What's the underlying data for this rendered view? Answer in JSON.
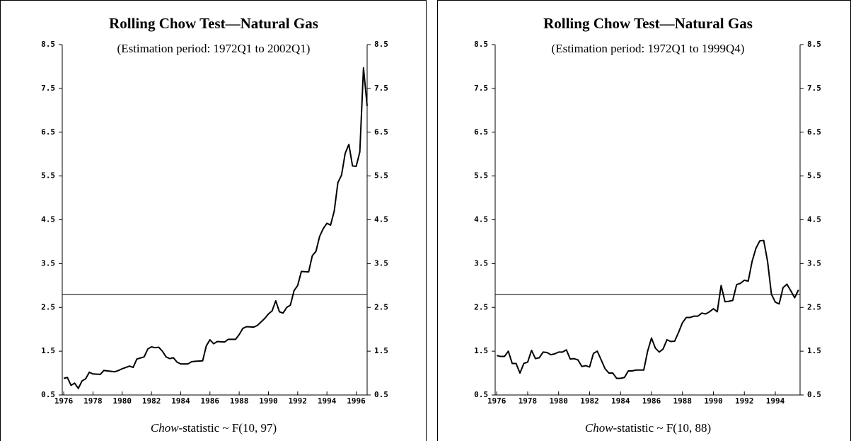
{
  "chart_data": [
    {
      "type": "line",
      "title": "Rolling Chow Test—Natural Gas",
      "subtitle": "(Estimation period: 1972Q1 to 2002Q1)",
      "xlabel_italic": "Chow",
      "xlabel": "-statistic ~ F(10, 97)",
      "color": "#000000",
      "xlim": [
        1975.9,
        1996.75
      ],
      "xticks": [
        1976,
        1978,
        1980,
        1982,
        1984,
        1986,
        1988,
        1990,
        1992,
        1994,
        1996
      ],
      "ylim": [
        0.5,
        8.5
      ],
      "yticks": [
        0.5,
        1.5,
        2.5,
        3.5,
        4.5,
        5.5,
        6.5,
        7.5,
        8.5
      ],
      "hline": 2.79,
      "x": [
        1976.0,
        1976.25,
        1976.5,
        1976.75,
        1977.0,
        1977.25,
        1977.5,
        1977.75,
        1978.0,
        1978.5,
        1978.75,
        1979.0,
        1979.5,
        1979.75,
        1980.0,
        1980.5,
        1980.75,
        1981.0,
        1981.5,
        1981.75,
        1982.0,
        1982.25,
        1982.5,
        1982.75,
        1983.0,
        1983.25,
        1983.5,
        1983.75,
        1984.0,
        1984.5,
        1984.75,
        1985.0,
        1985.5,
        1985.75,
        1986.0,
        1986.25,
        1986.5,
        1987.0,
        1987.25,
        1987.75,
        1988.0,
        1988.25,
        1988.5,
        1989.0,
        1989.25,
        1989.75,
        1990.0,
        1990.25,
        1990.5,
        1990.75,
        1991.0,
        1991.25,
        1991.5,
        1991.75,
        1992.0,
        1992.25,
        1992.75,
        1993.0,
        1993.25,
        1993.5,
        1993.75,
        1994.0,
        1994.25,
        1994.5,
        1994.75,
        1995.0,
        1995.25,
        1995.5,
        1995.75,
        1996.0,
        1996.25,
        1996.5,
        1996.75
      ],
      "values": [
        0.88,
        0.9,
        0.72,
        0.77,
        0.65,
        0.82,
        0.87,
        1.02,
        0.98,
        0.97,
        1.06,
        1.05,
        1.03,
        1.06,
        1.1,
        1.16,
        1.13,
        1.32,
        1.37,
        1.55,
        1.6,
        1.58,
        1.59,
        1.5,
        1.37,
        1.33,
        1.35,
        1.25,
        1.21,
        1.21,
        1.26,
        1.27,
        1.28,
        1.62,
        1.76,
        1.67,
        1.72,
        1.71,
        1.77,
        1.77,
        1.88,
        2.02,
        2.06,
        2.05,
        2.09,
        2.25,
        2.35,
        2.42,
        2.65,
        2.4,
        2.37,
        2.5,
        2.55,
        2.88,
        3.0,
        3.32,
        3.31,
        3.68,
        3.78,
        4.12,
        4.3,
        4.42,
        4.38,
        4.7,
        5.35,
        5.52,
        6.02,
        6.22,
        5.73,
        5.72,
        6.05,
        7.97,
        7.1
      ]
    },
    {
      "type": "line",
      "title": "Rolling Chow Test—Natural Gas",
      "subtitle": "(Estimation period: 1972Q1 to 1999Q4)",
      "xlabel_italic": "Chow",
      "xlabel": "-statistic ~ F(10, 88)",
      "color": "#000000",
      "xlim": [
        1975.9,
        1995.6
      ],
      "xticks": [
        1976,
        1978,
        1980,
        1982,
        1984,
        1986,
        1988,
        1990,
        1992,
        1994
      ],
      "ylim": [
        0.5,
        8.5
      ],
      "yticks": [
        0.5,
        1.5,
        2.5,
        3.5,
        4.5,
        5.5,
        6.5,
        7.5,
        8.5
      ],
      "hline": 2.79,
      "x": [
        1976.0,
        1976.25,
        1976.5,
        1976.75,
        1977.0,
        1977.25,
        1977.5,
        1977.75,
        1978.0,
        1978.25,
        1978.5,
        1978.75,
        1979.0,
        1979.25,
        1979.5,
        1979.75,
        1980.0,
        1980.25,
        1980.5,
        1980.75,
        1981.0,
        1981.25,
        1981.5,
        1981.75,
        1982.0,
        1982.25,
        1982.5,
        1982.75,
        1983.0,
        1983.25,
        1983.5,
        1983.75,
        1984.0,
        1984.25,
        1984.5,
        1984.75,
        1985.0,
        1985.25,
        1985.5,
        1985.75,
        1986.0,
        1986.25,
        1986.5,
        1986.75,
        1987.0,
        1987.25,
        1987.5,
        1987.75,
        1988.0,
        1988.25,
        1988.5,
        1988.75,
        1989.0,
        1989.25,
        1989.5,
        1989.75,
        1990.0,
        1990.25,
        1990.5,
        1990.75,
        1991.0,
        1991.25,
        1991.5,
        1991.75,
        1992.0,
        1992.25,
        1992.5,
        1992.75,
        1993.0,
        1993.25,
        1993.5,
        1993.75,
        1994.0,
        1994.25,
        1994.5,
        1994.75,
        1995.0,
        1995.25,
        1995.5
      ],
      "values": [
        1.4,
        1.38,
        1.38,
        1.5,
        1.22,
        1.22,
        1.0,
        1.22,
        1.25,
        1.52,
        1.33,
        1.35,
        1.48,
        1.47,
        1.42,
        1.44,
        1.48,
        1.48,
        1.53,
        1.32,
        1.33,
        1.3,
        1.15,
        1.17,
        1.14,
        1.45,
        1.5,
        1.3,
        1.1,
        1.0,
        1.0,
        0.88,
        0.88,
        0.9,
        1.05,
        1.05,
        1.07,
        1.07,
        1.07,
        1.5,
        1.8,
        1.57,
        1.48,
        1.55,
        1.76,
        1.72,
        1.73,
        1.93,
        2.15,
        2.27,
        2.27,
        2.3,
        2.3,
        2.37,
        2.35,
        2.4,
        2.47,
        2.4,
        3.0,
        2.63,
        2.64,
        2.66,
        3.02,
        3.05,
        3.12,
        3.1,
        3.55,
        3.85,
        4.02,
        4.03,
        3.55,
        2.8,
        2.62,
        2.58,
        2.95,
        3.03,
        2.88,
        2.72,
        2.9
      ]
    }
  ]
}
